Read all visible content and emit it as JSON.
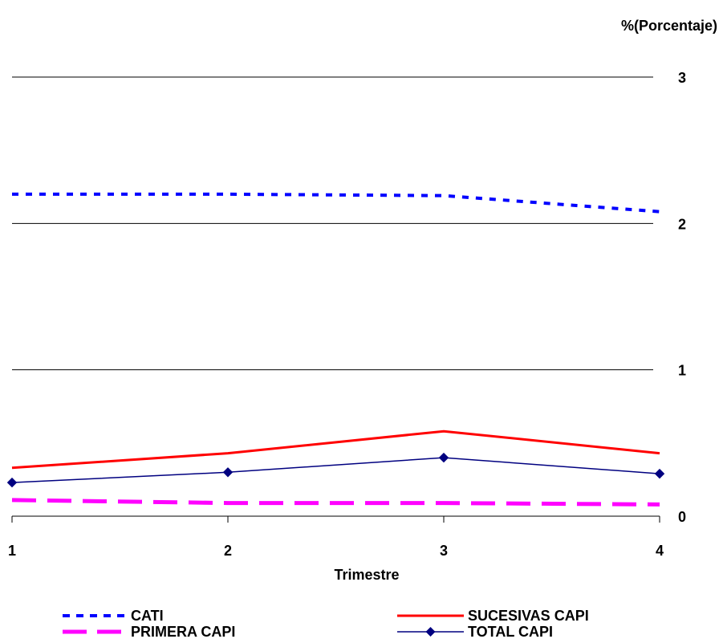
{
  "chart_data": {
    "type": "line",
    "title": "",
    "ylabel": "%(Porcentaje)",
    "xlabel": "Trimestre",
    "x": [
      1,
      2,
      3,
      4
    ],
    "x_tick_labels": [
      "1",
      "2",
      "3",
      "4"
    ],
    "ylim": [
      0,
      3
    ],
    "y_ticks": [
      0,
      1,
      2,
      3
    ],
    "y_axis_side": "right",
    "grid": "horizontal",
    "legend_position": "bottom",
    "series": [
      {
        "name": "CATI",
        "values": [
          2.2,
          2.2,
          2.19,
          2.08
        ],
        "color": "#0000ff",
        "style": "dotted"
      },
      {
        "name": "SUCESIVAS CAPI",
        "values": [
          0.33,
          0.43,
          0.58,
          0.43
        ],
        "color": "#ff0000",
        "style": "solid"
      },
      {
        "name": "PRIMERA CAPI",
        "values": [
          0.11,
          0.09,
          0.09,
          0.08
        ],
        "color": "#ff00ff",
        "style": "dashed"
      },
      {
        "name": "TOTAL CAPI",
        "values": [
          0.23,
          0.3,
          0.4,
          0.29
        ],
        "color": "#000080",
        "style": "solid-marker",
        "marker": "diamond"
      }
    ]
  }
}
